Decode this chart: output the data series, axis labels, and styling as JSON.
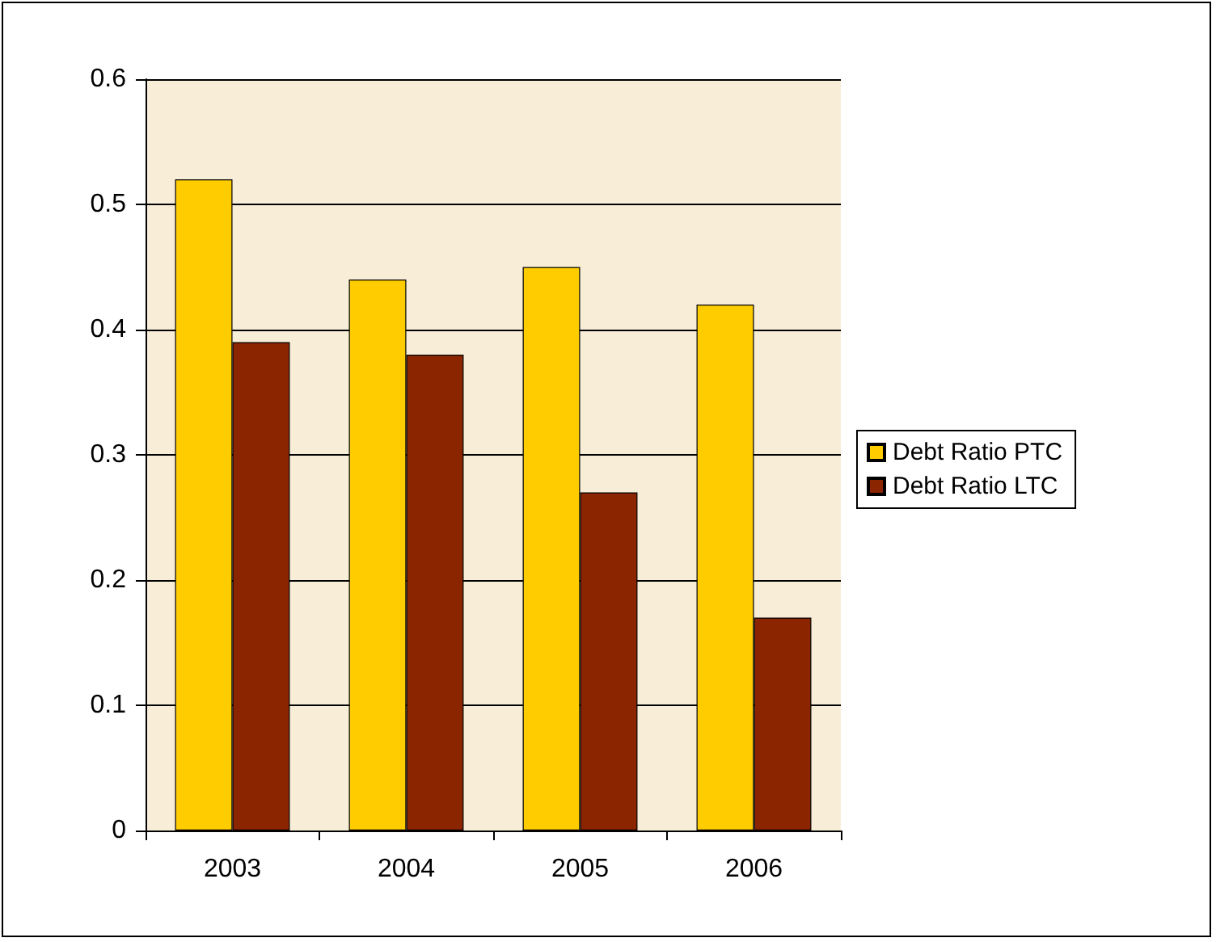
{
  "chart_data": {
    "type": "bar",
    "categories": [
      "2003",
      "2004",
      "2005",
      "2006"
    ],
    "series": [
      {
        "name": "Debt Ratio PTC",
        "color": "#ffcc00",
        "values": [
          0.52,
          0.44,
          0.45,
          0.42
        ]
      },
      {
        "name": "Debt Ratio LTC",
        "color": "#8b2500",
        "values": [
          0.39,
          0.38,
          0.27,
          0.17
        ]
      }
    ],
    "ylim": [
      0,
      0.6
    ],
    "yticks": [
      0,
      0.1,
      0.2,
      0.3,
      0.4,
      0.5,
      0.6
    ],
    "grid": "y",
    "legend": "right"
  }
}
